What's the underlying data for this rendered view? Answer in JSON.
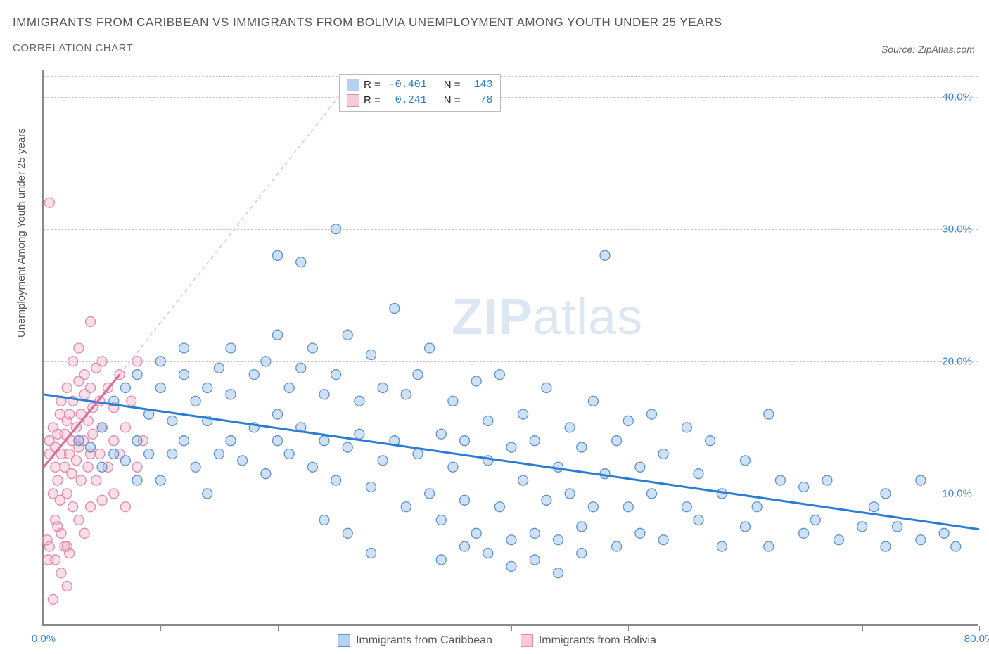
{
  "title": "IMMIGRANTS FROM CARIBBEAN VS IMMIGRANTS FROM BOLIVIA UNEMPLOYMENT AMONG YOUTH UNDER 25 YEARS",
  "subtitle": "CORRELATION CHART",
  "source": "Source: ZipAtlas.com",
  "ylabel": "Unemployment Among Youth under 25 years",
  "watermark_a": "ZIP",
  "watermark_b": "atlas",
  "chart": {
    "type": "scatter",
    "xlim": [
      0,
      80
    ],
    "ylim": [
      0,
      42
    ],
    "xticks": [
      0,
      10,
      20,
      30,
      40,
      50,
      60,
      70,
      80
    ],
    "xtick_labels": {
      "0": "0.0%",
      "80": "80.0%"
    },
    "yticks": [
      10,
      20,
      30,
      40
    ],
    "ytick_labels": {
      "10": "10.0%",
      "20": "20.0%",
      "30": "30.0%",
      "40": "40.0%"
    },
    "grid_color": "#cccccc",
    "axis_color": "#888888",
    "background": "#ffffff",
    "marker_radius": 7,
    "marker_stroke_width": 1.3,
    "series": [
      {
        "name": "Immigrants from Caribbean",
        "fill": "rgba(120,170,230,0.35)",
        "stroke": "#5b93cf",
        "R": "-0.401",
        "N": "143",
        "trend": {
          "x1": 0,
          "y1": 17.5,
          "x2": 80,
          "y2": 7.3,
          "color": "#2b7cd3",
          "width": 3,
          "dash": ""
        },
        "points": [
          [
            3,
            14
          ],
          [
            4,
            13.5
          ],
          [
            5,
            12
          ],
          [
            5,
            15
          ],
          [
            6,
            13
          ],
          [
            6,
            17
          ],
          [
            7,
            12.5
          ],
          [
            7,
            18
          ],
          [
            8,
            11
          ],
          [
            8,
            14
          ],
          [
            8,
            19
          ],
          [
            9,
            13
          ],
          [
            9,
            16
          ],
          [
            10,
            11
          ],
          [
            10,
            18
          ],
          [
            10,
            20
          ],
          [
            11,
            13
          ],
          [
            11,
            15.5
          ],
          [
            12,
            14
          ],
          [
            12,
            19
          ],
          [
            12,
            21
          ],
          [
            13,
            12
          ],
          [
            13,
            17
          ],
          [
            14,
            10
          ],
          [
            14,
            15.5
          ],
          [
            14,
            18
          ],
          [
            15,
            13
          ],
          [
            15,
            19.5
          ],
          [
            16,
            14
          ],
          [
            16,
            17.5
          ],
          [
            16,
            21
          ],
          [
            17,
            12.5
          ],
          [
            18,
            15
          ],
          [
            18,
            19
          ],
          [
            19,
            11.5
          ],
          [
            19,
            20
          ],
          [
            20,
            14
          ],
          [
            20,
            16
          ],
          [
            20,
            22
          ],
          [
            20,
            28
          ],
          [
            21,
            13
          ],
          [
            21,
            18
          ],
          [
            22,
            15
          ],
          [
            22,
            19.5
          ],
          [
            22,
            27.5
          ],
          [
            23,
            12
          ],
          [
            23,
            21
          ],
          [
            24,
            14
          ],
          [
            24,
            17.5
          ],
          [
            25,
            11
          ],
          [
            25,
            19
          ],
          [
            25,
            30
          ],
          [
            26,
            13.5
          ],
          [
            26,
            22
          ],
          [
            27,
            14.5
          ],
          [
            27,
            17
          ],
          [
            28,
            10.5
          ],
          [
            28,
            20.5
          ],
          [
            29,
            12.5
          ],
          [
            29,
            18
          ],
          [
            30,
            14
          ],
          [
            30,
            24
          ],
          [
            31,
            9
          ],
          [
            31,
            17.5
          ],
          [
            32,
            13
          ],
          [
            32,
            19
          ],
          [
            33,
            10
          ],
          [
            33,
            21
          ],
          [
            34,
            14.5
          ],
          [
            34,
            8
          ],
          [
            35,
            12
          ],
          [
            35,
            17
          ],
          [
            36,
            9.5
          ],
          [
            36,
            14
          ],
          [
            37,
            7
          ],
          [
            37,
            18.5
          ],
          [
            38,
            12.5
          ],
          [
            38,
            15.5
          ],
          [
            39,
            9
          ],
          [
            39,
            19
          ],
          [
            40,
            6.5
          ],
          [
            40,
            13.5
          ],
          [
            41,
            16
          ],
          [
            41,
            11
          ],
          [
            42,
            7
          ],
          [
            42,
            14
          ],
          [
            43,
            18
          ],
          [
            43,
            9.5
          ],
          [
            44,
            12
          ],
          [
            44,
            6.5
          ],
          [
            45,
            15
          ],
          [
            45,
            10
          ],
          [
            46,
            7.5
          ],
          [
            46,
            13.5
          ],
          [
            47,
            17
          ],
          [
            47,
            9
          ],
          [
            48,
            28
          ],
          [
            48,
            11.5
          ],
          [
            49,
            14
          ],
          [
            49,
            6
          ],
          [
            50,
            9
          ],
          [
            50,
            15.5
          ],
          [
            51,
            12
          ],
          [
            51,
            7
          ],
          [
            52,
            16
          ],
          [
            52,
            10
          ],
          [
            53,
            6.5
          ],
          [
            53,
            13
          ],
          [
            55,
            9
          ],
          [
            55,
            15
          ],
          [
            56,
            8
          ],
          [
            56,
            11.5
          ],
          [
            57,
            14
          ],
          [
            58,
            6
          ],
          [
            58,
            10
          ],
          [
            60,
            12.5
          ],
          [
            60,
            7.5
          ],
          [
            61,
            9
          ],
          [
            62,
            16
          ],
          [
            62,
            6
          ],
          [
            63,
            11
          ],
          [
            65,
            10.5
          ],
          [
            65,
            7
          ],
          [
            66,
            8
          ],
          [
            67,
            11
          ],
          [
            68,
            6.5
          ],
          [
            70,
            7.5
          ],
          [
            71,
            9
          ],
          [
            72,
            6
          ],
          [
            72,
            10
          ],
          [
            73,
            7.5
          ],
          [
            75,
            6.5
          ],
          [
            75,
            11
          ],
          [
            77,
            7
          ],
          [
            78,
            6
          ],
          [
            34,
            5
          ],
          [
            36,
            6
          ],
          [
            38,
            5.5
          ],
          [
            40,
            4.5
          ],
          [
            42,
            5
          ],
          [
            44,
            4
          ],
          [
            46,
            5.5
          ],
          [
            24,
            8
          ],
          [
            26,
            7
          ],
          [
            28,
            5.5
          ]
        ]
      },
      {
        "name": "Immigrants from Bolivia",
        "fill": "rgba(240,160,190,0.35)",
        "stroke": "#e28aa8",
        "R": "0.241",
        "N": "78",
        "trend": {
          "x1": 0,
          "y1": 12,
          "x2": 6.5,
          "y2": 19,
          "color": "#d36f97",
          "width": 3,
          "dash": ""
        },
        "trend_extend": {
          "x1": 6.5,
          "y1": 19,
          "x2": 27,
          "y2": 42,
          "color": "#e8b8c8",
          "width": 1.3,
          "dash": "5,5"
        },
        "points": [
          [
            0.5,
            13
          ],
          [
            0.5,
            14
          ],
          [
            0.8,
            10
          ],
          [
            0.8,
            15
          ],
          [
            1,
            12
          ],
          [
            1,
            13.5
          ],
          [
            1,
            8
          ],
          [
            1.2,
            14.5
          ],
          [
            1.2,
            11
          ],
          [
            1.4,
            16
          ],
          [
            1.4,
            9.5
          ],
          [
            1.5,
            13
          ],
          [
            1.5,
            17
          ],
          [
            1.5,
            7
          ],
          [
            1.8,
            12
          ],
          [
            1.8,
            14.5
          ],
          [
            2,
            10
          ],
          [
            2,
            15.5
          ],
          [
            2,
            18
          ],
          [
            2,
            6
          ],
          [
            2.2,
            13
          ],
          [
            2.2,
            16
          ],
          [
            2.4,
            11.5
          ],
          [
            2.4,
            14
          ],
          [
            2.5,
            9
          ],
          [
            2.5,
            17
          ],
          [
            2.5,
            20
          ],
          [
            2.8,
            12.5
          ],
          [
            2.8,
            15
          ],
          [
            3,
            8
          ],
          [
            3,
            13.5
          ],
          [
            3,
            18.5
          ],
          [
            3,
            21
          ],
          [
            3.2,
            11
          ],
          [
            3.2,
            16
          ],
          [
            3.4,
            14
          ],
          [
            3.5,
            7
          ],
          [
            3.5,
            17.5
          ],
          [
            3.5,
            19
          ],
          [
            3.8,
            12
          ],
          [
            3.8,
            15.5
          ],
          [
            4,
            9
          ],
          [
            4,
            13
          ],
          [
            4,
            18
          ],
          [
            4,
            23
          ],
          [
            4.2,
            14.5
          ],
          [
            4.2,
            16.5
          ],
          [
            4.5,
            11
          ],
          [
            4.5,
            19.5
          ],
          [
            4.8,
            13
          ],
          [
            4.8,
            17
          ],
          [
            5,
            9.5
          ],
          [
            5,
            15
          ],
          [
            5,
            20
          ],
          [
            5.5,
            12
          ],
          [
            5.5,
            18
          ],
          [
            6,
            14
          ],
          [
            6,
            16.5
          ],
          [
            6,
            10
          ],
          [
            6.5,
            13
          ],
          [
            6.5,
            19
          ],
          [
            7,
            15
          ],
          [
            7,
            9
          ],
          [
            7.5,
            17
          ],
          [
            8,
            12
          ],
          [
            8,
            20
          ],
          [
            8.5,
            14
          ],
          [
            0.5,
            6
          ],
          [
            0.8,
            2
          ],
          [
            1,
            5
          ],
          [
            1.2,
            7.5
          ],
          [
            1.5,
            4
          ],
          [
            2,
            3
          ],
          [
            0.5,
            32
          ],
          [
            0.3,
            6.5
          ],
          [
            0.4,
            5
          ],
          [
            1.8,
            6
          ],
          [
            2.2,
            5.5
          ]
        ]
      }
    ],
    "legend_bottom": [
      {
        "swatch_fill": "rgba(120,170,230,0.55)",
        "swatch_stroke": "#5b93cf",
        "label": "Immigrants from Caribbean"
      },
      {
        "swatch_fill": "rgba(240,160,190,0.55)",
        "swatch_stroke": "#e28aa8",
        "label": "Immigrants from Bolivia"
      }
    ]
  },
  "legend_labels": {
    "R": "R =",
    "N": "N ="
  }
}
